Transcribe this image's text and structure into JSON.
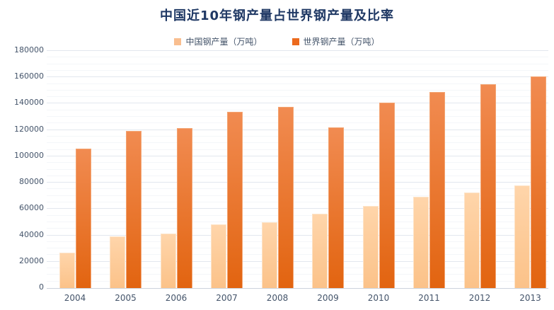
{
  "title": "中国近10年钢产量占世界钢产量及比率",
  "colors": {
    "title_text": "#1f3864",
    "axis_text": "#44546a",
    "legend_text": "#44546a",
    "china_swatch": "#f9be8f",
    "world_swatch": "#ec6a1e",
    "china_bar_top": "#ffd5aa",
    "china_bar_bottom": "#fbc289",
    "world_bar_top": "#f18b51",
    "world_bar_bottom": "#e26410",
    "gridline_major": "#e2e7ee",
    "gridline_minor": "#f4f6f9",
    "axis_line": "#ccd3dd"
  },
  "chart_data": {
    "type": "bar",
    "title": "中国近10年钢产量占世界钢产量及比率",
    "categories": [
      "2004",
      "2005",
      "2006",
      "2007",
      "2008",
      "2009",
      "2010",
      "2011",
      "2012",
      "2013"
    ],
    "series": [
      {
        "name": "中国钢产量（万吨）",
        "values": [
          27000,
          39000,
          41500,
          48500,
          50000,
          56500,
          62500,
          69500,
          72500,
          78000
        ]
      },
      {
        "name": "世界钢产量（万吨）",
        "values": [
          106000,
          119500,
          121500,
          134000,
          137500,
          122000,
          141000,
          149000,
          155000,
          160500
        ]
      }
    ],
    "xlabel": "",
    "ylabel": "",
    "ylim": [
      0,
      180000
    ],
    "y_tick_step": 20000,
    "y_minor_step": 5000,
    "y_ticks": [
      "0",
      "20000",
      "40000",
      "60000",
      "80000",
      "100000",
      "120000",
      "140000",
      "160000",
      "180000"
    ],
    "grid": true,
    "legend_position": "top-center"
  }
}
